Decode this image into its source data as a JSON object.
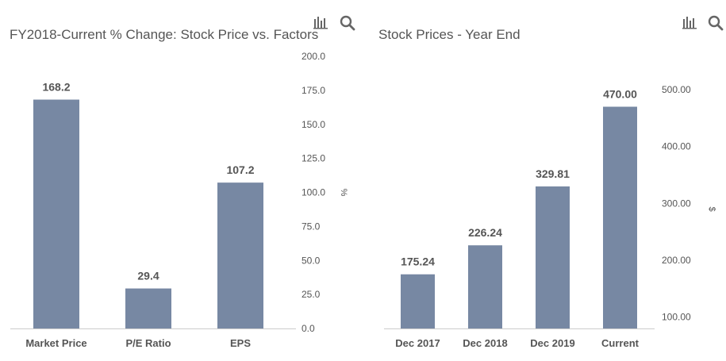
{
  "icons": {
    "chart_menu": "bar-chart-icon",
    "zoom": "magnifier-icon"
  },
  "colors": {
    "bar": "#7788a3",
    "axis_text": "#555555",
    "title": "#555555",
    "baseline": "#cccccc"
  },
  "chart_data": [
    {
      "type": "bar",
      "title": "FY2018-Current % Change: Stock Price vs. Factors",
      "categories": [
        "Market Price",
        "P/E Ratio",
        "EPS"
      ],
      "values": [
        168.2,
        29.4,
        107.2
      ],
      "value_labels": [
        "168.2",
        "29.4",
        "107.2"
      ],
      "ylabel": "%",
      "ylim": [
        0,
        200
      ],
      "yticks": [
        0,
        25,
        50,
        75,
        100,
        125,
        150,
        175,
        200
      ],
      "ytick_labels": [
        "0.0",
        "25.0",
        "50.0",
        "75.0",
        "100.0",
        "125.0",
        "150.0",
        "175.0",
        "200.0"
      ],
      "y_axis_side": "right",
      "grid": false
    },
    {
      "type": "bar",
      "title": "Stock Prices - Year End",
      "categories": [
        "Dec 2017",
        "Dec 2018",
        "Dec 2019",
        "Current"
      ],
      "values": [
        175.24,
        226.24,
        329.81,
        470.0
      ],
      "value_labels": [
        "175.24",
        "226.24",
        "329.81",
        "470.00"
      ],
      "ylabel": "$",
      "ylim": [
        80,
        500
      ],
      "yticks": [
        100,
        200,
        300,
        400,
        500
      ],
      "ytick_labels": [
        "100.00",
        "200.00",
        "300.00",
        "400.00",
        "500.00"
      ],
      "y_axis_side": "right",
      "grid": false
    }
  ]
}
